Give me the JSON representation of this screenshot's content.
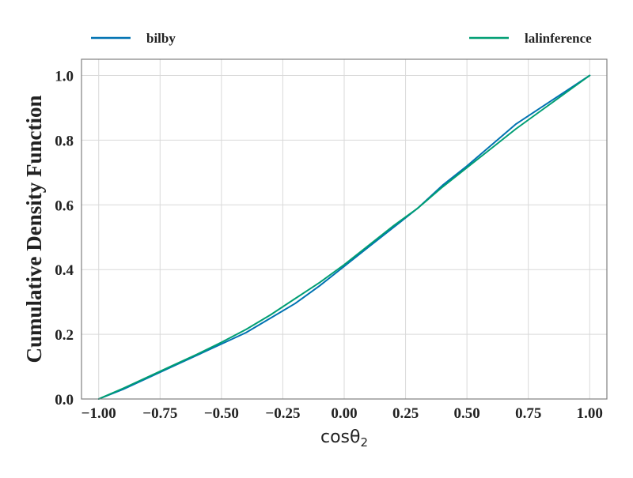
{
  "chart_data": {
    "type": "line",
    "xlabel": "cosθ",
    "xlabel_subscript": "2",
    "ylabel": "Cumulative Density Function",
    "xlim": [
      -1.07,
      1.07
    ],
    "ylim": [
      0.0,
      1.05
    ],
    "xticks": [
      -1.0,
      -0.75,
      -0.5,
      -0.25,
      0.0,
      0.25,
      0.5,
      0.75,
      1.0
    ],
    "xtick_labels": [
      "−1.00",
      "−0.75",
      "−0.50",
      "−0.25",
      "0.00",
      "0.25",
      "0.50",
      "0.75",
      "1.00"
    ],
    "yticks": [
      0.0,
      0.2,
      0.4,
      0.6,
      0.8,
      1.0
    ],
    "ytick_labels": [
      "0.0",
      "0.2",
      "0.4",
      "0.6",
      "0.8",
      "1.0"
    ],
    "grid": true,
    "legend_placement": "above plot, split left and right",
    "series": [
      {
        "name": "bilby",
        "color": "#0072b2",
        "x": [
          -1.0,
          -0.9,
          -0.8,
          -0.7,
          -0.6,
          -0.5,
          -0.4,
          -0.3,
          -0.2,
          -0.1,
          0.0,
          0.1,
          0.2,
          0.3,
          0.4,
          0.5,
          0.6,
          0.7,
          0.8,
          0.9,
          1.0
        ],
        "y": [
          0.0,
          0.03,
          0.065,
          0.1,
          0.135,
          0.17,
          0.205,
          0.25,
          0.295,
          0.35,
          0.41,
          0.47,
          0.53,
          0.59,
          0.66,
          0.72,
          0.785,
          0.85,
          0.9,
          0.95,
          1.0
        ]
      },
      {
        "name": "lalinference",
        "color": "#009e73",
        "x": [
          -1.0,
          -0.9,
          -0.8,
          -0.7,
          -0.6,
          -0.5,
          -0.4,
          -0.3,
          -0.2,
          -0.1,
          0.0,
          0.1,
          0.2,
          0.3,
          0.4,
          0.5,
          0.6,
          0.7,
          0.8,
          0.9,
          1.0
        ],
        "y": [
          0.0,
          0.033,
          0.068,
          0.103,
          0.138,
          0.175,
          0.215,
          0.26,
          0.31,
          0.36,
          0.415,
          0.475,
          0.535,
          0.59,
          0.655,
          0.715,
          0.775,
          0.835,
          0.89,
          0.945,
          1.0
        ]
      }
    ]
  }
}
